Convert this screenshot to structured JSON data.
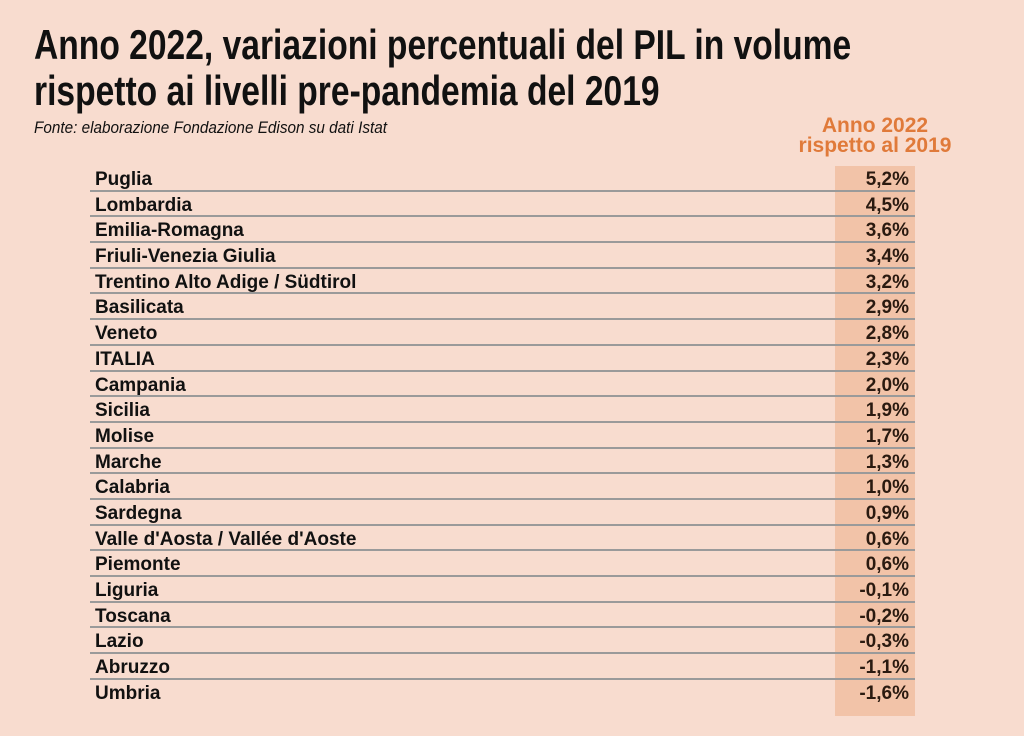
{
  "chart_data": {
    "type": "table",
    "title_line1": "Anno 2022, variazioni percentuali del PIL in volume",
    "title_line2": "rispetto ai livelli pre-pandemia del 2019",
    "source": "Fonte: elaborazione Fondazione Edison su dati Istat",
    "column_header_line1": "Anno 2022",
    "column_header_line2": "rispetto al 2019",
    "rows": [
      {
        "region": "Puglia",
        "value": "5,2%"
      },
      {
        "region": "Lombardia",
        "value": "4,5%"
      },
      {
        "region": "Emilia-Romagna",
        "value": "3,6%"
      },
      {
        "region": "Friuli-Venezia Giulia",
        "value": "3,4%"
      },
      {
        "region": "Trentino Alto Adige / Südtirol",
        "value": "3,2%"
      },
      {
        "region": "Basilicata",
        "value": "2,9%"
      },
      {
        "region": "Veneto",
        "value": "2,8%"
      },
      {
        "region": "ITALIA",
        "value": "2,3%"
      },
      {
        "region": "Campania",
        "value": "2,0%"
      },
      {
        "region": "Sicilia",
        "value": "1,9%"
      },
      {
        "region": "Molise",
        "value": "1,7%"
      },
      {
        "region": "Marche",
        "value": "1,3%"
      },
      {
        "region": "Calabria",
        "value": "1,0%"
      },
      {
        "region": "Sardegna",
        "value": "0,9%"
      },
      {
        "region": "Valle d'Aosta / Vallée d'Aoste",
        "value": "0,6%"
      },
      {
        "region": "Piemonte",
        "value": "0,6%"
      },
      {
        "region": "Liguria",
        "value": "-0,1%"
      },
      {
        "region": "Toscana",
        "value": "-0,2%"
      },
      {
        "region": "Lazio",
        "value": "-0,3%"
      },
      {
        "region": "Abruzzo",
        "value": "-1,1%"
      },
      {
        "region": "Umbria",
        "value": "-1,6%"
      }
    ],
    "colors": {
      "background": "#f8dccf",
      "highlight_column": "#f2c3a8",
      "header": "#e07a3a"
    }
  }
}
